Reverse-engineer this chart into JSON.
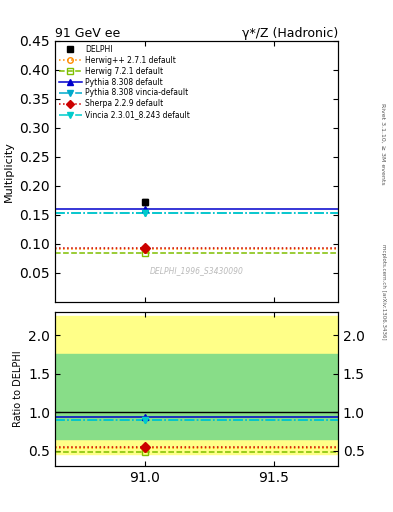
{
  "title": "91 GeV ee",
  "subtitle": "γ*/Z (Hadronic)",
  "right_label": "Rivet 3.1.10, ≥ 3M events",
  "right_label2": "mcplots.cern.ch [arXiv:1306.3436]",
  "ylabel_main": "Multiplicity",
  "ylabel_ratio": "Ratio to DELPHI",
  "watermark": "DELPHI_1996_S3430090",
  "xrange": [
    90.65,
    91.75
  ],
  "yrange_main": [
    0.0,
    0.45
  ],
  "yrange_ratio": [
    0.3,
    2.3
  ],
  "yticks_main": [
    0.05,
    0.1,
    0.15,
    0.2,
    0.25,
    0.3,
    0.35,
    0.4,
    0.45
  ],
  "yticks_ratio": [
    0.5,
    1.0,
    1.5,
    2.0
  ],
  "xticks": [
    91.0,
    91.5
  ],
  "data_x": 91.0,
  "data_y": 0.172,
  "data_yerr": 0.005,
  "data_label": "DELPHI",
  "data_color": "#000000",
  "band_yellow_lo": 0.45,
  "band_yellow_hi": 2.25,
  "band_green_lo": 0.65,
  "band_green_hi": 1.75,
  "series": [
    {
      "label": "Herwig++ 2.7.1 default",
      "color": "#ff8c00",
      "style": "dotted",
      "marker": "o",
      "marker_face": "none",
      "y_val": 0.091,
      "ratio": 0.529
    },
    {
      "label": "Herwig 7.2.1 default",
      "color": "#7fbf00",
      "style": "dashed",
      "marker": "s",
      "marker_face": "none",
      "y_val": 0.083,
      "ratio": 0.483
    },
    {
      "label": "Pythia 8.308 default",
      "color": "#0000cc",
      "style": "solid",
      "marker": "^",
      "marker_face": "#0000cc",
      "y_val": 0.16,
      "ratio": 0.93
    },
    {
      "label": "Pythia 8.308 vincia-default",
      "color": "#00aacc",
      "style": "dashdot",
      "marker": "v",
      "marker_face": "#00aacc",
      "y_val": 0.153,
      "ratio": 0.89
    },
    {
      "label": "Sherpa 2.2.9 default",
      "color": "#cc0000",
      "style": "dotted",
      "marker": "D",
      "marker_face": "#cc0000",
      "y_val": 0.093,
      "ratio": 0.541
    },
    {
      "label": "Vincia 2.3.01_8.243 default",
      "color": "#00cccc",
      "style": "dashdot",
      "marker": "v",
      "marker_face": "#00cccc",
      "y_val": 0.153,
      "ratio": 0.89
    }
  ]
}
